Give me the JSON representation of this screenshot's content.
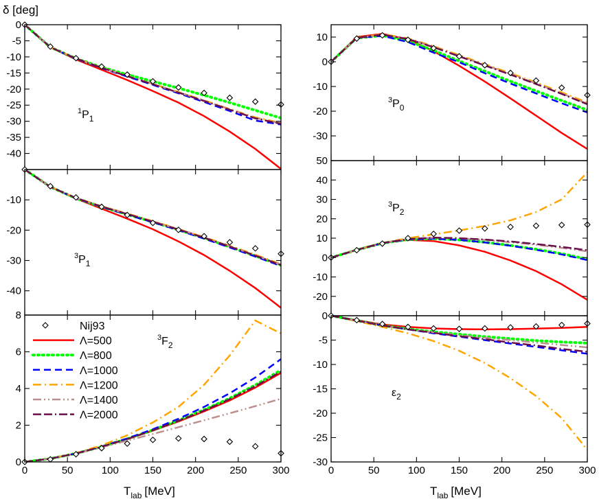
{
  "figure": {
    "y_axis_label": "δ [deg]",
    "x_axis_label": "T",
    "x_axis_label_sub": "lab",
    "x_axis_label_unit": "[MeV]"
  },
  "legend": {
    "entries": [
      "Nij93",
      "Λ=500",
      "Λ=800",
      "Λ=1000",
      "Λ=1200",
      "Λ=1400",
      "Λ=2000"
    ]
  },
  "chart_data": [
    {
      "type": "line",
      "panel": "1P1",
      "title_sup": "1",
      "title_main": "P",
      "title_sub": "1",
      "xlim": [
        0,
        300
      ],
      "ylim": [
        -45,
        0
      ],
      "xticks": [
        0,
        50,
        100,
        150,
        200,
        250,
        300
      ],
      "yticks": [
        0,
        -5,
        -10,
        -15,
        -20,
        -25,
        -30,
        -35,
        -40
      ],
      "x": [
        0,
        30,
        60,
        90,
        120,
        150,
        180,
        210,
        240,
        270,
        300
      ],
      "nij93": [
        0,
        -6.8,
        -10.4,
        -13.0,
        -15.5,
        -17.6,
        -19.5,
        -21.2,
        -22.7,
        -23.9,
        -24.8
      ],
      "series": [
        {
          "name": "Λ=500",
          "color": "#ff0000",
          "dash": "",
          "width": 2.5,
          "values": [
            0,
            -7.0,
            -10.8,
            -14.0,
            -17.2,
            -20.6,
            -24.2,
            -28.4,
            -33.2,
            -38.6,
            -44.8
          ]
        },
        {
          "name": "Λ=800",
          "color": "#00ff00",
          "dash": "2,5",
          "width": 4,
          "values": [
            0,
            -7.0,
            -10.5,
            -13.2,
            -15.5,
            -17.6,
            -19.7,
            -21.9,
            -24.2,
            -26.6,
            -29.0
          ]
        },
        {
          "name": "Λ=1000",
          "color": "#0000ff",
          "dash": "10,6",
          "width": 2.5,
          "values": [
            0,
            -7.0,
            -10.6,
            -13.5,
            -16.1,
            -18.7,
            -21.3,
            -24.0,
            -26.8,
            -29.8,
            -31.0
          ]
        },
        {
          "name": "Λ=1200",
          "color": "#ffa500",
          "dash": "12,5,2,5",
          "width": 2.5,
          "values": [
            0,
            -7.0,
            -10.5,
            -13.3,
            -15.9,
            -18.4,
            -20.9,
            -23.5,
            -26.2,
            -28.8,
            -30.5
          ]
        },
        {
          "name": "Λ=1400",
          "color": "#bc8f8f",
          "dash": "12,4,2,4,2,4",
          "width": 2.5,
          "values": [
            0,
            -7.0,
            -10.5,
            -13.3,
            -15.9,
            -18.4,
            -21.0,
            -23.6,
            -26.3,
            -29.0,
            -30.6
          ]
        },
        {
          "name": "Λ=2000",
          "color": "#6b0f4a",
          "dash": "12,4,12,4,2,4",
          "width": 2.5,
          "values": [
            0,
            -7.0,
            -10.5,
            -13.4,
            -16.0,
            -18.5,
            -21.1,
            -23.7,
            -26.4,
            -29.1,
            -30.8
          ]
        }
      ]
    },
    {
      "type": "line",
      "panel": "3P0",
      "title_sup": "3",
      "title_main": "P",
      "title_sub": "0",
      "xlim": [
        0,
        300
      ],
      "ylim": [
        -40,
        15
      ],
      "xticks": [
        0,
        50,
        100,
        150,
        200,
        250,
        300
      ],
      "yticks": [
        10,
        0,
        -10,
        -20,
        -30
      ],
      "x": [
        0,
        30,
        60,
        90,
        120,
        150,
        180,
        210,
        240,
        270,
        300
      ],
      "nij93": [
        0,
        9.4,
        10.7,
        8.9,
        5.5,
        2.2,
        -1.4,
        -4.5,
        -7.6,
        -10.5,
        -13.5
      ],
      "series": [
        {
          "name": "Λ=500",
          "color": "#ff0000",
          "dash": "",
          "width": 2.5,
          "values": [
            0,
            10.0,
            11.3,
            9.0,
            4.3,
            -1.6,
            -8.0,
            -14.8,
            -21.8,
            -28.8,
            -35.3
          ]
        },
        {
          "name": "Λ=800",
          "color": "#00ff00",
          "dash": "2,5",
          "width": 4,
          "values": [
            0,
            9.6,
            10.6,
            8.4,
            4.6,
            0.3,
            -3.8,
            -7.9,
            -11.8,
            -15.7,
            -19.5
          ]
        },
        {
          "name": "Λ=1000",
          "color": "#0000ff",
          "dash": "10,6",
          "width": 2.5,
          "values": [
            0,
            9.6,
            10.5,
            8.0,
            3.7,
            -0.2,
            -4.6,
            -8.8,
            -12.8,
            -16.8,
            -20.5
          ]
        },
        {
          "name": "Λ=1200",
          "color": "#ffa500",
          "dash": "12,5,2,5",
          "width": 2.5,
          "values": [
            0,
            9.6,
            11.2,
            9.5,
            6.3,
            2.7,
            -1.0,
            -4.6,
            -8.4,
            -12.4,
            -16.5
          ]
        },
        {
          "name": "Λ=1400",
          "color": "#bc8f8f",
          "dash": "12,4,2,4,2,4",
          "width": 2.5,
          "values": [
            0,
            9.6,
            11.0,
            9.3,
            6.0,
            2.4,
            -1.3,
            -4.9,
            -8.8,
            -12.8,
            -17.0
          ]
        },
        {
          "name": "Λ=2000",
          "color": "#6b0f4a",
          "dash": "12,4,12,4,2,4",
          "width": 2.5,
          "values": [
            0,
            9.6,
            11.0,
            9.2,
            5.9,
            2.2,
            -1.5,
            -5.2,
            -9.0,
            -13.0,
            -17.2
          ]
        }
      ]
    },
    {
      "type": "line",
      "panel": "3P1",
      "title_sup": "3",
      "title_main": "P",
      "title_sub": "1",
      "xlim": [
        0,
        300
      ],
      "ylim": [
        -48,
        0
      ],
      "xticks": [
        0,
        50,
        100,
        150,
        200,
        250,
        300
      ],
      "yticks": [
        -10,
        -20,
        -30,
        -40
      ],
      "x": [
        0,
        30,
        60,
        90,
        120,
        150,
        180,
        210,
        240,
        270,
        300
      ],
      "nij93": [
        0,
        -5.5,
        -9.2,
        -12.3,
        -15.0,
        -17.6,
        -19.9,
        -22.0,
        -24.0,
        -26.0,
        -27.8
      ],
      "series": [
        {
          "name": "Λ=500",
          "color": "#ff0000",
          "dash": "",
          "width": 2.5,
          "values": [
            0,
            -5.7,
            -9.6,
            -12.9,
            -16.2,
            -19.7,
            -23.7,
            -28.2,
            -33.4,
            -39.1,
            -45.6
          ]
        },
        {
          "name": "Λ=800",
          "color": "#00ff00",
          "dash": "2,5",
          "width": 4,
          "values": [
            0,
            -5.7,
            -9.5,
            -12.3,
            -14.8,
            -17.3,
            -19.9,
            -22.6,
            -25.5,
            -28.5,
            -31.6
          ]
        },
        {
          "name": "Λ=1000",
          "color": "#0000ff",
          "dash": "10,6",
          "width": 2.5,
          "values": [
            0,
            -5.7,
            -9.5,
            -12.3,
            -14.9,
            -17.4,
            -20.0,
            -22.8,
            -25.7,
            -28.7,
            -31.8
          ]
        },
        {
          "name": "Λ=1200",
          "color": "#ffa500",
          "dash": "12,5,2,5",
          "width": 2.5,
          "values": [
            0,
            -5.7,
            -9.4,
            -12.1,
            -14.5,
            -17.0,
            -19.6,
            -22.3,
            -25.1,
            -28.1,
            -31.2
          ]
        },
        {
          "name": "Λ=1400",
          "color": "#bc8f8f",
          "dash": "12,4,2,4,2,4",
          "width": 2.5,
          "values": [
            0,
            -5.7,
            -9.4,
            -12.2,
            -14.6,
            -17.1,
            -19.7,
            -22.4,
            -25.3,
            -28.3,
            -31.4
          ]
        },
        {
          "name": "Λ=2000",
          "color": "#6b0f4a",
          "dash": "12,4,12,4,2,4",
          "width": 2.5,
          "values": [
            0,
            -5.7,
            -9.4,
            -12.2,
            -14.7,
            -17.2,
            -19.8,
            -22.5,
            -25.4,
            -28.4,
            -31.5
          ]
        }
      ]
    },
    {
      "type": "line",
      "panel": "3P2",
      "title_sup": "3",
      "title_main": "P",
      "title_sub": "2",
      "xlim": [
        0,
        300
      ],
      "ylim": [
        -30,
        50
      ],
      "xticks": [
        0,
        50,
        100,
        150,
        200,
        250,
        300
      ],
      "yticks": [
        50,
        40,
        30,
        20,
        10,
        0,
        -10,
        -20
      ],
      "x": [
        0,
        30,
        60,
        90,
        120,
        150,
        180,
        210,
        240,
        270,
        300
      ],
      "nij93": [
        0,
        3.8,
        7.2,
        10.0,
        12.2,
        13.9,
        15.0,
        15.8,
        16.4,
        16.8,
        17.0
      ],
      "series": [
        {
          "name": "Λ=500",
          "color": "#ff0000",
          "dash": "",
          "width": 2.5,
          "values": [
            0,
            4.1,
            7.6,
            9.1,
            8.5,
            6.3,
            3.0,
            -1.5,
            -7.0,
            -13.8,
            -21.8
          ]
        },
        {
          "name": "Λ=800",
          "color": "#00ff00",
          "dash": "2,5",
          "width": 4,
          "values": [
            0,
            3.9,
            7.4,
            9.3,
            9.7,
            9.1,
            7.9,
            6.3,
            4.3,
            2.0,
            -0.8
          ]
        },
        {
          "name": "Λ=1000",
          "color": "#0000ff",
          "dash": "10,6",
          "width": 2.5,
          "values": [
            0,
            3.9,
            7.4,
            9.3,
            9.7,
            9.1,
            7.8,
            6.1,
            4.0,
            1.6,
            -1.3
          ]
        },
        {
          "name": "Λ=1200",
          "color": "#ffa500",
          "dash": "12,5,2,5",
          "width": 2.5,
          "values": [
            0,
            3.9,
            7.5,
            10.0,
            12.0,
            14.0,
            16.3,
            19.2,
            23.5,
            30.0,
            44.0
          ]
        },
        {
          "name": "Λ=1400",
          "color": "#bc8f8f",
          "dash": "12,4,2,4,2,4",
          "width": 2.5,
          "values": [
            0,
            3.9,
            7.5,
            9.5,
            10.2,
            9.9,
            9.1,
            7.9,
            6.6,
            5.0,
            3.2
          ]
        },
        {
          "name": "Λ=2000",
          "color": "#6b0f4a",
          "dash": "12,4,12,4,2,4",
          "width": 2.5,
          "values": [
            0,
            3.9,
            7.5,
            9.5,
            10.3,
            10.0,
            9.3,
            8.3,
            7.0,
            5.5,
            3.8
          ]
        }
      ]
    },
    {
      "type": "line",
      "panel": "3F2",
      "title_sup": "3",
      "title_main": "F",
      "title_sub": "2",
      "xlim": [
        0,
        300
      ],
      "ylim": [
        0,
        8
      ],
      "xticks": [
        0,
        50,
        100,
        150,
        200,
        250,
        300
      ],
      "xticklabels": [
        "0",
        "50",
        "100",
        "150",
        "200",
        "250",
        "300"
      ],
      "yticks": [
        8,
        6,
        4,
        2,
        0
      ],
      "x": [
        0,
        30,
        60,
        90,
        120,
        150,
        180,
        210,
        240,
        270,
        300
      ],
      "nij93": [
        0,
        0.14,
        0.42,
        0.75,
        1.0,
        1.2,
        1.28,
        1.25,
        1.1,
        0.85,
        0.47
      ],
      "series": [
        {
          "name": "Λ=500",
          "color": "#ff0000",
          "dash": "",
          "width": 2.5,
          "values": [
            0,
            0.18,
            0.46,
            0.82,
            1.24,
            1.7,
            2.2,
            2.75,
            3.35,
            4.05,
            4.85
          ]
        },
        {
          "name": "Λ=800",
          "color": "#00ff00",
          "dash": "2,5",
          "width": 4,
          "values": [
            0,
            0.18,
            0.46,
            0.83,
            1.26,
            1.74,
            2.26,
            2.84,
            3.47,
            4.19,
            5.0
          ]
        },
        {
          "name": "Λ=1000",
          "color": "#0000ff",
          "dash": "10,6",
          "width": 2.5,
          "values": [
            0,
            0.18,
            0.46,
            0.84,
            1.28,
            1.78,
            2.35,
            3.0,
            3.74,
            4.6,
            5.6
          ]
        },
        {
          "name": "Λ=1200",
          "color": "#ffa500",
          "dash": "12,5,2,5",
          "width": 2.5,
          "values": [
            0,
            0.18,
            0.48,
            0.9,
            1.45,
            2.15,
            3.0,
            4.2,
            5.8,
            7.7,
            7.0
          ]
        },
        {
          "name": "Λ=1400",
          "color": "#bc8f8f",
          "dash": "12,4,2,4,2,4",
          "width": 2.5,
          "values": [
            0,
            0.18,
            0.45,
            0.8,
            1.16,
            1.52,
            1.89,
            2.27,
            2.65,
            3.04,
            3.44
          ]
        },
        {
          "name": "Λ=2000",
          "color": "#6b0f4a",
          "dash": "12,4,12,4,2,4",
          "width": 2.5,
          "values": [
            0,
            0.18,
            0.46,
            0.83,
            1.25,
            1.72,
            2.24,
            2.8,
            3.42,
            4.12,
            4.92
          ]
        }
      ]
    },
    {
      "type": "line",
      "panel": "eps2",
      "title_main": "ε",
      "title_sub": "2",
      "xlim": [
        0,
        300
      ],
      "ylim": [
        -30,
        0
      ],
      "xticks": [
        0,
        50,
        100,
        150,
        200,
        250,
        300
      ],
      "xticklabels": [
        "0",
        "50",
        "100",
        "150",
        "200",
        "250",
        "300"
      ],
      "yticks": [
        0,
        -5,
        -10,
        -15,
        -20,
        -25,
        -30
      ],
      "x": [
        0,
        30,
        60,
        90,
        120,
        150,
        180,
        210,
        240,
        270,
        300
      ],
      "nij93": [
        0,
        -0.9,
        -1.7,
        -2.3,
        -2.6,
        -2.7,
        -2.6,
        -2.4,
        -2.2,
        -1.9,
        -1.6
      ],
      "series": [
        {
          "name": "Λ=500",
          "color": "#ff0000",
          "dash": "",
          "width": 2.5,
          "values": [
            0,
            -0.9,
            -1.8,
            -2.3,
            -2.6,
            -2.75,
            -2.8,
            -2.75,
            -2.65,
            -2.5,
            -2.3
          ]
        },
        {
          "name": "Λ=800",
          "color": "#00ff00",
          "dash": "2,5",
          "width": 4,
          "values": [
            0,
            -1.0,
            -2.0,
            -2.7,
            -3.3,
            -3.8,
            -4.3,
            -4.7,
            -5.1,
            -5.4,
            -5.6
          ]
        },
        {
          "name": "Λ=1000",
          "color": "#0000ff",
          "dash": "10,6",
          "width": 2.5,
          "values": [
            0,
            -1.0,
            -2.0,
            -2.8,
            -3.6,
            -4.3,
            -5.0,
            -5.7,
            -6.4,
            -7.1,
            -7.8
          ]
        },
        {
          "name": "Λ=1200",
          "color": "#ffa500",
          "dash": "12,5,2,5",
          "width": 2.5,
          "values": [
            0,
            -1.1,
            -2.3,
            -3.6,
            -5.2,
            -7.2,
            -9.7,
            -12.8,
            -16.5,
            -21.0,
            -27.5
          ]
        },
        {
          "name": "Λ=1400",
          "color": "#bc8f8f",
          "dash": "12,4,2,4,2,4",
          "width": 2.5,
          "values": [
            0,
            -1.0,
            -2.0,
            -2.8,
            -3.4,
            -4.0,
            -4.5,
            -5.0,
            -5.5,
            -6.0,
            -6.5
          ]
        },
        {
          "name": "Λ=2000",
          "color": "#6b0f4a",
          "dash": "12,4,12,4,2,4",
          "width": 2.5,
          "values": [
            0,
            -1.0,
            -2.0,
            -2.8,
            -3.5,
            -4.2,
            -4.8,
            -5.5,
            -6.1,
            -6.8,
            -7.4
          ]
        }
      ]
    }
  ]
}
